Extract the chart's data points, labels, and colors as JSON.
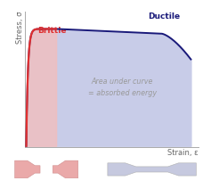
{
  "background_color": "#ffffff",
  "plot_bg_color": "#ffffff",
  "axis_label_stress": "Stress, σ",
  "axis_label_strain": "Strain, ε",
  "brittle_label": "Brittle",
  "ductile_label": "Ductile",
  "area_text_line1": "Area under curve",
  "area_text_line2": "= absorbed energy",
  "brittle_color": "#e03030",
  "ductile_color": "#1a1a7a",
  "fill_color": "#c8cce8",
  "brittle_fill_color": "#f0c0c0",
  "brittle_specimen_color": "#e8a0a0",
  "ductile_specimen_color": "#c0c4dc",
  "figsize": [
    2.37,
    2.12
  ],
  "dpi": 100
}
